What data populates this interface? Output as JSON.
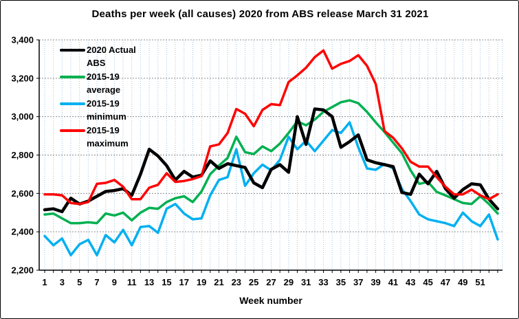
{
  "chart_data": {
    "type": "line",
    "title": "Deaths per week (all causes) 2020 from ABS release March 31 2021",
    "xlabel": "Week number",
    "ylabel": "",
    "ylim": [
      2200,
      3400
    ],
    "ytick_step": 200,
    "ytick_values": [
      2200,
      2400,
      2600,
      2800,
      3000,
      3200,
      3400
    ],
    "ytick_labels": [
      "2,200",
      "2,400",
      "2,600",
      "2,800",
      "3,000",
      "3,200",
      "3,400"
    ],
    "xtick_values": [
      1,
      3,
      5,
      7,
      9,
      11,
      13,
      15,
      17,
      19,
      21,
      23,
      25,
      27,
      29,
      31,
      33,
      35,
      37,
      39,
      41,
      43,
      45,
      47,
      49,
      51
    ],
    "xtick_labels": [
      "1",
      "3",
      "5",
      "7",
      "9",
      "11",
      "13",
      "15",
      "17",
      "19",
      "21",
      "23",
      "25",
      "27",
      "29",
      "31",
      "33",
      "35",
      "37",
      "39",
      "41",
      "43",
      "45",
      "47",
      "49",
      "51"
    ],
    "weeks": [
      1,
      2,
      3,
      4,
      5,
      6,
      7,
      8,
      9,
      10,
      11,
      12,
      13,
      14,
      15,
      16,
      17,
      18,
      19,
      20,
      21,
      22,
      23,
      24,
      25,
      26,
      27,
      28,
      29,
      30,
      31,
      32,
      33,
      34,
      35,
      36,
      37,
      38,
      39,
      40,
      41,
      42,
      43,
      44,
      45,
      46,
      47,
      48,
      49,
      50,
      51,
      52,
      53
    ],
    "grid": {
      "vertical_color": "#9DC3E6",
      "horizontal_color": "#8C8C8C",
      "grid_on": true
    },
    "legend_position": "top-left-inside",
    "axis_color": "#000000",
    "background_color": "#FFFFFF",
    "series": [
      {
        "name": "2020 Actual ABS",
        "legend_lines": [
          "2020 Actual",
          "ABS"
        ],
        "color": "#000000",
        "width": 4.5,
        "values": [
          2515,
          2520,
          2505,
          2575,
          2545,
          2560,
          2585,
          2610,
          2615,
          2625,
          2590,
          2700,
          2830,
          2795,
          2745,
          2670,
          2715,
          2685,
          2695,
          2770,
          2730,
          2755,
          2745,
          2735,
          2655,
          2630,
          2725,
          2750,
          2710,
          3000,
          2855,
          3040,
          3035,
          3000,
          2840,
          2870,
          2905,
          2775,
          2760,
          2750,
          2740,
          2605,
          2595,
          2700,
          2650,
          2715,
          2625,
          2575,
          2620,
          2650,
          2645,
          2570,
          2520
        ]
      },
      {
        "name": "2015-19 average",
        "legend_lines": [
          "2015-19",
          "average"
        ],
        "color": "#00B050",
        "width": 3.5,
        "values": [
          2490,
          2495,
          2470,
          2445,
          2445,
          2450,
          2445,
          2495,
          2485,
          2500,
          2460,
          2500,
          2525,
          2520,
          2555,
          2575,
          2585,
          2555,
          2610,
          2700,
          2745,
          2785,
          2895,
          2815,
          2805,
          2845,
          2820,
          2860,
          2915,
          2975,
          2955,
          2985,
          3025,
          3050,
          3075,
          3085,
          3070,
          3025,
          2970,
          2920,
          2865,
          2810,
          2720,
          2650,
          2660,
          2608,
          2590,
          2570,
          2550,
          2545,
          2585,
          2545,
          2495
        ]
      },
      {
        "name": "2015-19 minimum",
        "legend_lines": [
          "2015-19",
          "minimum"
        ],
        "color": "#00B0F0",
        "width": 3.5,
        "values": [
          2378,
          2330,
          2365,
          2278,
          2335,
          2358,
          2278,
          2383,
          2345,
          2410,
          2330,
          2425,
          2430,
          2395,
          2520,
          2545,
          2495,
          2465,
          2470,
          2590,
          2670,
          2685,
          2830,
          2640,
          2705,
          2750,
          2720,
          2775,
          2895,
          2830,
          2875,
          2820,
          2875,
          2930,
          2915,
          2970,
          2840,
          2730,
          2723,
          2753,
          2730,
          2623,
          2560,
          2490,
          2465,
          2455,
          2445,
          2430,
          2500,
          2455,
          2430,
          2490,
          2360
        ]
      },
      {
        "name": "2015-19 maximum",
        "legend_lines": [
          "2015-19",
          "maximum"
        ],
        "color": "#FF0000",
        "width": 3.5,
        "values": [
          2595,
          2595,
          2590,
          2550,
          2545,
          2555,
          2650,
          2655,
          2670,
          2635,
          2570,
          2570,
          2630,
          2645,
          2705,
          2660,
          2665,
          2675,
          2690,
          2845,
          2855,
          2915,
          3040,
          3015,
          2950,
          3035,
          3065,
          3060,
          3180,
          3215,
          3255,
          3310,
          3345,
          3250,
          3275,
          3290,
          3320,
          3265,
          3170,
          2925,
          2890,
          2835,
          2765,
          2740,
          2740,
          2685,
          2635,
          2595,
          2595,
          2620,
          2590,
          2570,
          2595
        ]
      }
    ]
  }
}
